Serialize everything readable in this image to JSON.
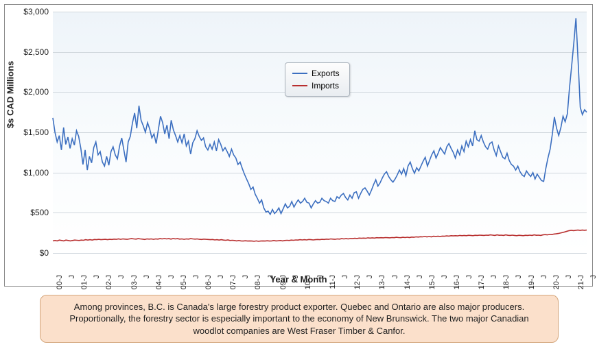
{
  "chart": {
    "type": "line",
    "y_axis": {
      "title": "$s CAD Millions",
      "min": 0,
      "max": 3000,
      "tick_step": 500,
      "tick_labels": [
        "$0",
        "$500",
        "$1,000",
        "$1,500",
        "$2,000",
        "$2,500",
        "$3,000"
      ]
    },
    "x_axis": {
      "title": "Year & Month",
      "tick_labels": [
        "00-J",
        "J",
        "01-J",
        "J",
        "02-J",
        "J",
        "03-J",
        "J",
        "04-J",
        "J",
        "05-J",
        "J",
        "06-J",
        "J",
        "07-J",
        "J",
        "08-J",
        "J",
        "09-J",
        "J",
        "10-J",
        "J",
        "11-J",
        "J",
        "12-J",
        "J",
        "13-J",
        "J",
        "14-J",
        "J",
        "15-J",
        "J",
        "16-J",
        "J",
        "17-J",
        "J",
        "18-J",
        "J",
        "19-J",
        "J",
        "20-J",
        "J",
        "21-J",
        "J"
      ]
    },
    "background_gradient_top": "#eef4f9",
    "background_gradient_bottom": "#ffffff",
    "grid_color": "#cfd6dc",
    "border_color": "#888888",
    "axis_label_fontsize": 12,
    "axis_title_fontsize": 13,
    "axis_title_fontweight": "bold",
    "series": {
      "exports": {
        "label": "Exports",
        "color": "#3c6fc0",
        "line_width": 1.6,
        "data": [
          1680,
          1500,
          1380,
          1460,
          1280,
          1560,
          1350,
          1440,
          1300,
          1420,
          1340,
          1520,
          1450,
          1300,
          1100,
          1280,
          1030,
          1200,
          1120,
          1310,
          1380,
          1220,
          1260,
          1130,
          1080,
          1200,
          1090,
          1260,
          1320,
          1220,
          1170,
          1330,
          1430,
          1280,
          1130,
          1380,
          1450,
          1620,
          1740,
          1550,
          1830,
          1650,
          1580,
          1500,
          1620,
          1540,
          1430,
          1480,
          1360,
          1530,
          1700,
          1620,
          1480,
          1590,
          1420,
          1650,
          1530,
          1460,
          1380,
          1460,
          1370,
          1480,
          1330,
          1390,
          1230,
          1370,
          1420,
          1520,
          1450,
          1400,
          1430,
          1320,
          1280,
          1350,
          1290,
          1380,
          1270,
          1410,
          1350,
          1270,
          1310,
          1260,
          1200,
          1290,
          1220,
          1180,
          1100,
          1130,
          1050,
          980,
          920,
          860,
          790,
          820,
          730,
          680,
          620,
          660,
          560,
          510,
          520,
          480,
          540,
          490,
          520,
          560,
          490,
          550,
          610,
          560,
          580,
          640,
          570,
          620,
          660,
          620,
          640,
          680,
          630,
          620,
          560,
          610,
          650,
          620,
          630,
          680,
          650,
          640,
          620,
          680,
          650,
          640,
          700,
          680,
          720,
          740,
          690,
          660,
          720,
          680,
          750,
          760,
          680,
          740,
          790,
          810,
          770,
          720,
          780,
          850,
          910,
          830,
          870,
          930,
          980,
          1010,
          950,
          910,
          880,
          920,
          970,
          1030,
          980,
          1050,
          960,
          1080,
          1130,
          1050,
          990,
          1060,
          1020,
          1080,
          1140,
          1190,
          1080,
          1150,
          1220,
          1270,
          1180,
          1240,
          1310,
          1270,
          1230,
          1320,
          1360,
          1300,
          1250,
          1180,
          1280,
          1220,
          1330,
          1260,
          1390,
          1320,
          1410,
          1330,
          1520,
          1410,
          1390,
          1460,
          1380,
          1320,
          1290,
          1360,
          1380,
          1280,
          1210,
          1330,
          1260,
          1190,
          1170,
          1240,
          1150,
          1100,
          1080,
          1030,
          1080,
          1010,
          970,
          950,
          1020,
          980,
          950,
          1000,
          920,
          980,
          940,
          900,
          890,
          1050,
          1180,
          1290,
          1470,
          1690,
          1550,
          1460,
          1560,
          1700,
          1630,
          1730,
          2050,
          2320,
          2610,
          2920,
          2380,
          1810,
          1720,
          1780,
          1750
        ]
      },
      "imports": {
        "label": "Imports",
        "color": "#b82e2e",
        "line_width": 1.6,
        "data": [
          150,
          155,
          150,
          160,
          155,
          150,
          160,
          155,
          150,
          155,
          160,
          158,
          155,
          160,
          158,
          165,
          160,
          165,
          160,
          168,
          165,
          170,
          165,
          168,
          170,
          165,
          170,
          168,
          172,
          170,
          175,
          170,
          175,
          172,
          170,
          175,
          178,
          175,
          172,
          178,
          175,
          172,
          168,
          175,
          172,
          175,
          170,
          175,
          172,
          178,
          175,
          180,
          175,
          178,
          172,
          180,
          175,
          178,
          172,
          175,
          170,
          175,
          172,
          178,
          175,
          172,
          175,
          170,
          168,
          172,
          170,
          168,
          165,
          168,
          162,
          165,
          160,
          165,
          160,
          158,
          162,
          155,
          158,
          155,
          150,
          155,
          150,
          148,
          152,
          148,
          150,
          148,
          145,
          150,
          145,
          148,
          150,
          148,
          152,
          148,
          150,
          155,
          150,
          152,
          155,
          150,
          155,
          158,
          155,
          160,
          158,
          162,
          160,
          165,
          162,
          165,
          162,
          168,
          165,
          162,
          165,
          168,
          165,
          170,
          168,
          172,
          170,
          175,
          172,
          170,
          175,
          172,
          178,
          175,
          178,
          175,
          180,
          178,
          182,
          180,
          185,
          182,
          185,
          182,
          188,
          185,
          188,
          185,
          190,
          188,
          190,
          188,
          192,
          190,
          188,
          192,
          190,
          195,
          192,
          190,
          195,
          192,
          196,
          192,
          198,
          195,
          200,
          198,
          202,
          200,
          205,
          200,
          205,
          200,
          208,
          205,
          208,
          205,
          210,
          208,
          212,
          210,
          215,
          212,
          215,
          212,
          218,
          215,
          218,
          215,
          220,
          218,
          215,
          220,
          218,
          222,
          220,
          218,
          222,
          220,
          225,
          222,
          218,
          225,
          220,
          222,
          218,
          225,
          220,
          218,
          222,
          218,
          215,
          220,
          218,
          215,
          220,
          218,
          222,
          218,
          225,
          220,
          222,
          218,
          225,
          228,
          225,
          230,
          228,
          235,
          238,
          242,
          248,
          255,
          262,
          270,
          278,
          282,
          278,
          282,
          285,
          280,
          285,
          282,
          285
        ]
      }
    },
    "legend": {
      "position": "inside-top",
      "background_top": "#fdfdfd",
      "background_bottom": "#e9edf1",
      "border_color": "#a9b2bb",
      "fontsize": 12
    }
  },
  "caption": {
    "text": "Among provinces, B.C. is Canada's large forestry product exporter. Quebec and Ontario are also major producers. Proportionally, the forestry sector is especially important to the economy of New Brunswick. The two major Canadian woodlot companies are West Fraser Timber & Canfor.",
    "background_color": "#fbe0cb",
    "border_color": "#d4a67c",
    "fontsize": 13,
    "border_radius": 10
  }
}
